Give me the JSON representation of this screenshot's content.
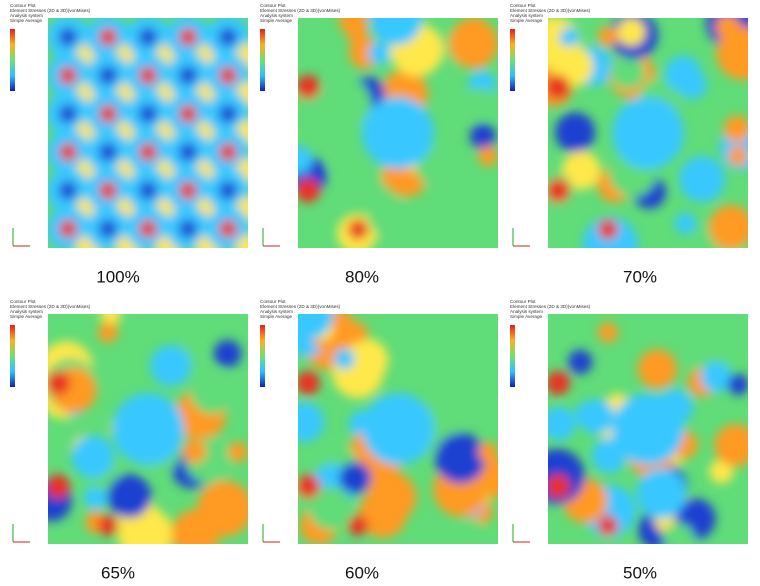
{
  "panels": [
    {
      "caption": "100%",
      "header": [
        "Contour Plot",
        "Element Stresses (2D & 3D)(vonMises)",
        "Analysis system",
        "Simple Average"
      ]
    },
    {
      "caption": "80%",
      "header": [
        "Contour Plot",
        "Element Stresses (2D & 3D)(vonMises)",
        "Analysis system",
        "Simple Average"
      ]
    },
    {
      "caption": "70%",
      "header": [
        "Contour Plot",
        "Element Stresses (2D & 3D)(vonMises)",
        "Analysis system",
        "Simple Average"
      ]
    },
    {
      "caption": "65%",
      "header": [
        "Contour Plot",
        "Element Stresses (2D & 3D)(vonMises)",
        "Analysis system",
        "Simple Average"
      ]
    },
    {
      "caption": "60%",
      "header": [
        "Contour Plot",
        "Element Stresses (2D & 3D)(vonMises)",
        "Analysis system",
        "Simple Average"
      ]
    },
    {
      "caption": "50%",
      "header": [
        "Contour Plot",
        "Element Stresses (2D & 3D)(vonMises)",
        "Analysis system",
        "Simple Average"
      ]
    }
  ]
}
